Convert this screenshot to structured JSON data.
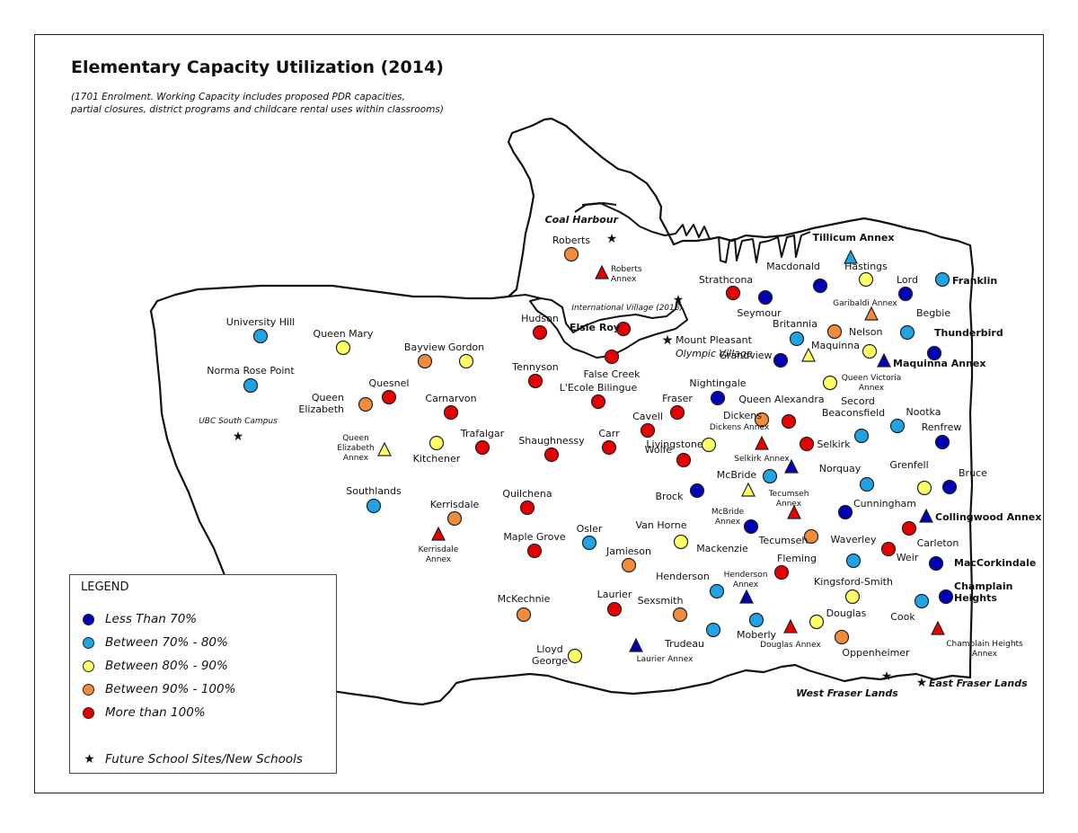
{
  "title": "Elementary Capacity Utilization (2014)",
  "subtitle_lines": [
    "(1701  Enrolment. Working Capacity includes proposed PDR capacities,",
    "partial closures, district programs and childcare rental uses within classrooms)"
  ],
  "colors": {
    "lt70": "#0000b4",
    "b70_80": "#1fa2e6",
    "b80_90": "#ffff66",
    "b90_100": "#f08c3c",
    "gt100": "#e60000"
  },
  "legend": {
    "title": "LEGEND",
    "items": [
      {
        "label": "Less Than 70%",
        "color": "#0000b4"
      },
      {
        "label": "Between 70% - 80%",
        "color": "#1fa2e6"
      },
      {
        "label": "Between 80% - 90%",
        "color": "#ffff66"
      },
      {
        "label": "Between 90% - 100%",
        "color": "#f08c3c"
      },
      {
        "label": "More than 100%",
        "color": "#e60000"
      }
    ],
    "future_label": "Future School Sites/New Schools"
  },
  "future_sites": [
    "Coal Harbour",
    "International Village (2016)",
    "Mount Pleasant",
    "Olympic Village",
    "UBC South Campus",
    "West Fraser Lands",
    "East Fraser Lands"
  ],
  "schools": [
    "Roberts",
    "Roberts Annex",
    "Strathcona",
    "Seymour",
    "Macdonald",
    "Hastings",
    "Lord",
    "Franklin",
    "Tillicum Annex",
    "Garibaldi Annex",
    "Elsie Roy",
    "Hudson",
    "University Hill",
    "Queen Mary",
    "Bayview",
    "Gordon",
    "Norma Rose Point",
    "Tennyson",
    "False Creek",
    "L'Ecole Bilingue",
    "Quesnel",
    "Carnarvon",
    "Queen Elizabeth",
    "Fraser",
    "Cavell",
    "Dickens",
    "Dickens Annex",
    "Queen Alexandra",
    "Nightingale",
    "Grandview",
    "Britannia",
    "Nelson",
    "Begbie",
    "Thunderbird",
    "Maquinna",
    "Maquinna Annex",
    "Queen Victoria Annex",
    "Secord",
    "Beaconsfield",
    "Nootka",
    "Renfrew",
    "Queen Elizabeth Annex",
    "Kitchener",
    "Trafalgar",
    "Shaughnessy",
    "Carr",
    "Livingstone",
    "Selkirk",
    "Selkirk Annex",
    "Wolfe",
    "McBride",
    "McBride Annex",
    "Norquay",
    "Grenfell",
    "Bruce",
    "Tecumseh Annex",
    "Southlands",
    "Kerrisdale",
    "Kerrisdale Annex",
    "Quilchena",
    "Brock",
    "Cunningham",
    "Collingwood Annex",
    "Van Horne",
    "Mackenzie",
    "Maple Grove",
    "Osler",
    "Tecumseh",
    "Waverley",
    "Weir",
    "Carleton",
    "MacCorkindale",
    "Jamieson",
    "Fleming",
    "Henderson",
    "Henderson Annex",
    "Kingsford-Smith",
    "Champlain Heights",
    "McKechnie",
    "Laurier",
    "Sexsmith",
    "Douglas",
    "Cook",
    "Trudeau",
    "Moberly",
    "Douglas Annex",
    "Oppenheimer",
    "Champlain Heights Annex",
    "Lloyd George",
    "Laurier Annex"
  ]
}
